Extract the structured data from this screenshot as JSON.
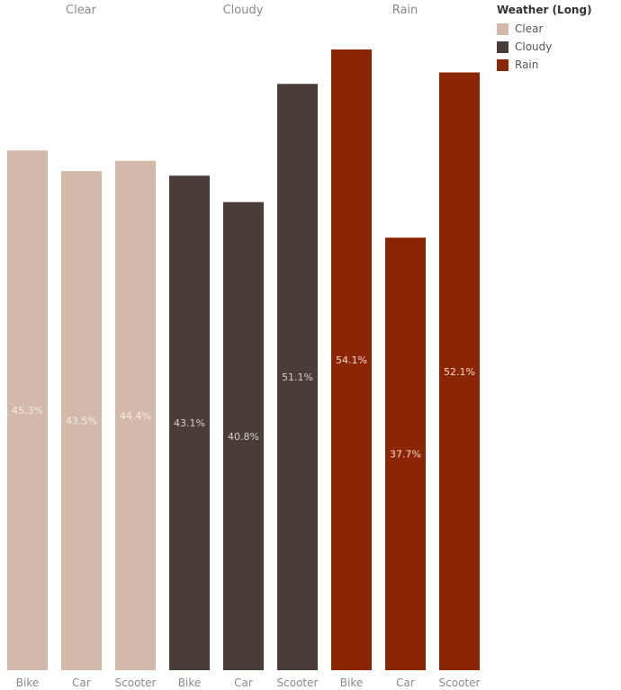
{
  "chart_data": {
    "type": "bar",
    "groups": [
      "Clear",
      "Cloudy",
      "Rain"
    ],
    "categories": [
      "Bike",
      "Car",
      "Scooter"
    ],
    "series": [
      {
        "name": "Clear",
        "color": "#d4b9aa",
        "values": [
          45.3,
          43.5,
          44.4
        ],
        "labels": [
          "45.3%",
          "43.5%",
          "44.4%"
        ]
      },
      {
        "name": "Cloudy",
        "color": "#4a3c38",
        "values": [
          43.1,
          40.8,
          51.1
        ],
        "labels": [
          "43.1%",
          "40.8%",
          "51.1%"
        ]
      },
      {
        "name": "Rain",
        "color": "#8b2504",
        "values": [
          54.1,
          37.7,
          52.1
        ],
        "labels": [
          "54.1%",
          "37.7%",
          "52.1%"
        ]
      }
    ],
    "legend_title": "Weather (Long)",
    "legend_position": "top-right",
    "ylim": [
      0,
      54.1
    ],
    "grid": false
  }
}
